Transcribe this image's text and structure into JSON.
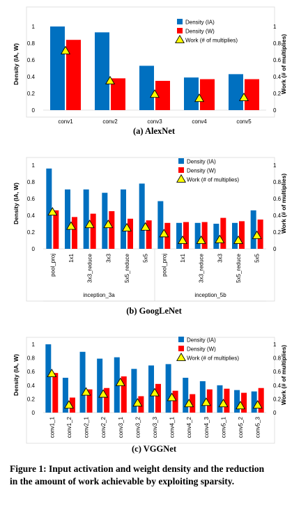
{
  "colors": {
    "ia": "#0070C0",
    "w": "#FF0000",
    "work": "#FFFF00",
    "frame": "#d9d9d9",
    "text": "#000000"
  },
  "chart_data": [
    {
      "type": "bar",
      "caption": "(a) AlexNet",
      "categories": [
        "conv1",
        "conv2",
        "conv3",
        "conv4",
        "conv5"
      ],
      "series": [
        {
          "name": "Density (IA)",
          "values": [
            1.0,
            0.93,
            0.53,
            0.39,
            0.43
          ]
        },
        {
          "name": "Density (W)",
          "values": [
            0.84,
            0.38,
            0.35,
            0.37,
            0.37
          ]
        },
        {
          "name": "Work (# of multiplies)",
          "values": [
            0.71,
            0.35,
            0.19,
            0.14,
            0.15
          ],
          "axis": "right",
          "marker": "triangle"
        }
      ],
      "ylabel": "Density (IA, W)",
      "y2label": "Work (# of multiplies)",
      "ylim": [
        0,
        1
      ],
      "yticks": [
        "0",
        "0.2",
        "0.4",
        "0.6",
        "0.8",
        "1"
      ],
      "y2lim": [
        0,
        1
      ],
      "y2ticks": [
        "0",
        "0.2",
        "0.4",
        "0.6",
        "0.8",
        "1"
      ],
      "legend_position": "top-right"
    },
    {
      "type": "bar",
      "caption": "(b) GoogLeNet",
      "categories": [
        "pool_proj",
        "1x1",
        "3x3_reduce",
        "3x3",
        "5x5_reduce",
        "5x5",
        "pool_proj",
        "1x1",
        "3x3_reduce",
        "3x3",
        "5x5_reduce",
        "5x5"
      ],
      "groups": [
        {
          "label": "inception_3a",
          "count": 6
        },
        {
          "label": "inception_5b",
          "count": 6
        }
      ],
      "series": [
        {
          "name": "Density (IA)",
          "values": [
            0.96,
            0.71,
            0.71,
            0.67,
            0.71,
            0.78,
            0.57,
            0.31,
            0.31,
            0.3,
            0.31,
            0.46
          ]
        },
        {
          "name": "Density (W)",
          "values": [
            0.46,
            0.38,
            0.42,
            0.45,
            0.36,
            0.34,
            0.31,
            0.32,
            0.32,
            0.37,
            0.33,
            0.35
          ]
        },
        {
          "name": "Work (# of multiplies)",
          "values": [
            0.44,
            0.27,
            0.29,
            0.29,
            0.25,
            0.26,
            0.18,
            0.1,
            0.1,
            0.11,
            0.1,
            0.16
          ],
          "axis": "right",
          "marker": "triangle"
        }
      ],
      "ylabel": "Density (IA, W)",
      "y2label": "Work (# of multiplies)",
      "ylim": [
        0,
        1
      ],
      "yticks": [
        "0",
        "0.2",
        "0.4",
        "0.6",
        "0.8",
        "1"
      ],
      "y2lim": [
        0,
        1
      ],
      "y2ticks": [
        "0",
        "0.2",
        "0.4",
        "0.6",
        "0.8",
        "1"
      ],
      "legend_position": "top-right"
    },
    {
      "type": "bar",
      "caption": "(c) VGGNet",
      "categories": [
        "conv1_1",
        "conv1_2",
        "conv2_1",
        "conv2_2",
        "conv3_1",
        "conv3_2",
        "conv3_3",
        "conv4_1",
        "conv4_2",
        "conv4_3",
        "conv5_1",
        "conv5_2",
        "conv5_3"
      ],
      "series": [
        {
          "name": "Density (IA)",
          "values": [
            1.0,
            0.51,
            0.89,
            0.79,
            0.81,
            0.64,
            0.69,
            0.71,
            0.51,
            0.46,
            0.4,
            0.33,
            0.31
          ]
        },
        {
          "name": "Density (W)",
          "values": [
            0.58,
            0.22,
            0.34,
            0.36,
            0.53,
            0.24,
            0.42,
            0.32,
            0.27,
            0.34,
            0.35,
            0.29,
            0.36
          ]
        },
        {
          "name": "Work (# of multiplies)",
          "values": [
            0.57,
            0.11,
            0.3,
            0.27,
            0.44,
            0.14,
            0.29,
            0.22,
            0.13,
            0.15,
            0.13,
            0.1,
            0.11
          ],
          "axis": "right",
          "marker": "triangle"
        }
      ],
      "ylabel": "Density (IA, W)",
      "y2label": "Work (# of multiplies)",
      "ylim": [
        0,
        1
      ],
      "yticks": [
        "0",
        "0.2",
        "0.4",
        "0.6",
        "0.8",
        "1"
      ],
      "y2lim": [
        0,
        1
      ],
      "y2ticks": [
        "0",
        "0.2",
        "0.4",
        "0.6",
        "0.8",
        "1"
      ],
      "legend_position": "top-right"
    }
  ],
  "figure_caption": {
    "line1": "Figure 1: Input activation and weight density and the reduction",
    "line2": "in the amount of work achievable by exploiting sparsity."
  }
}
